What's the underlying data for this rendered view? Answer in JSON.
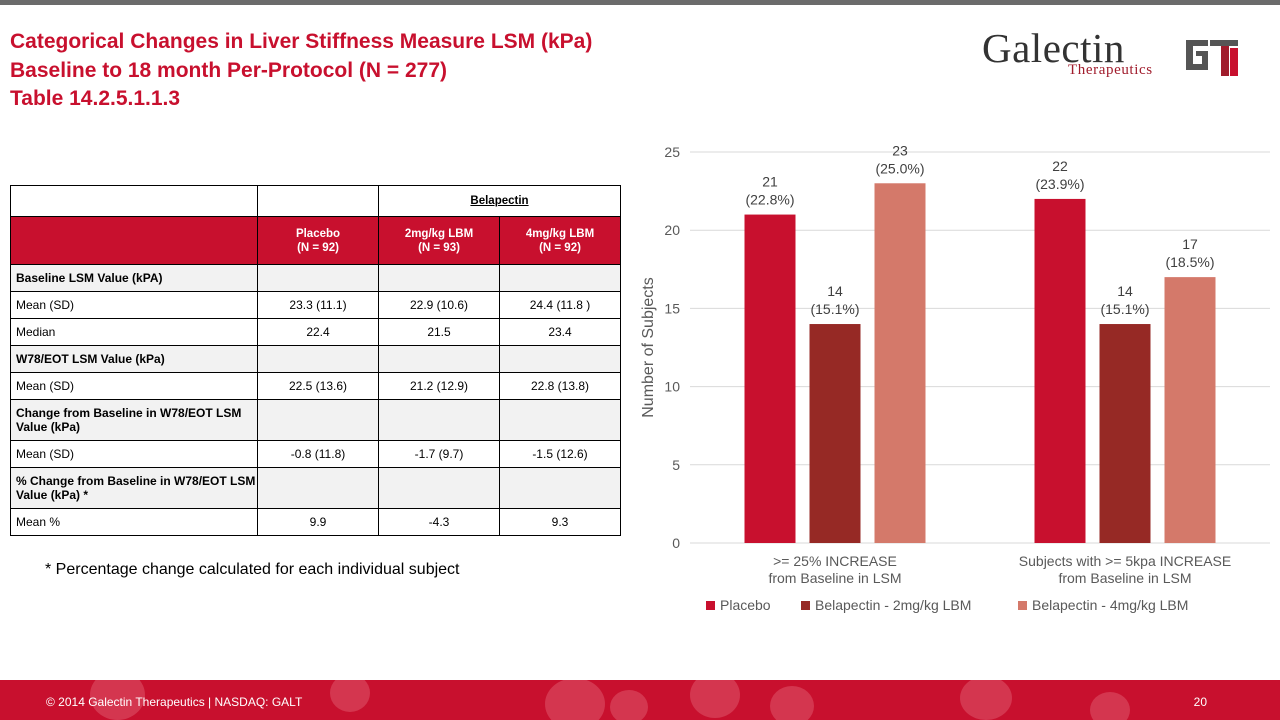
{
  "title": {
    "line1": "Categorical Changes in Liver Stiffness Measure LSM (kPa)",
    "line2": "Baseline to 18 month  Per-Protocol  (N = 277)",
    "line3": "Table 14.2.5.1.1.3"
  },
  "logo": {
    "name": "Galectin",
    "sub": "Therapeutics"
  },
  "table": {
    "group_header": "Belapectin",
    "columns": [
      {
        "name": "Placebo",
        "n": "(N = 92)"
      },
      {
        "name": "2mg/kg LBM",
        "n": "(N = 93)"
      },
      {
        "name": "4mg/kg LBM",
        "n": "(N = 92)"
      }
    ],
    "sections": [
      {
        "title": "Baseline LSM Value (kPA)",
        "rows": [
          {
            "label": "Mean (SD)",
            "values": [
              "23.3 (11.1)",
              "22.9 (10.6)",
              "24.4 (11.8 )"
            ]
          },
          {
            "label": "Median",
            "values": [
              "22.4",
              "21.5",
              "23.4"
            ]
          }
        ]
      },
      {
        "title": "W78/EOT LSM Value (kPa)",
        "rows": [
          {
            "label": "Mean (SD)",
            "values": [
              "22.5 (13.6)",
              "21.2 (12.9)",
              "22.8 (13.8)"
            ]
          }
        ]
      },
      {
        "title": "Change from Baseline in W78/EOT LSM Value (kPa)",
        "rows": [
          {
            "label": "Mean (SD)",
            "values": [
              "-0.8 (11.8)",
              "-1.7 (9.7)",
              "-1.5 (12.6)"
            ]
          }
        ]
      },
      {
        "title": "% Change from Baseline in W78/EOT LSM Value (kPa) *",
        "rows": [
          {
            "label": "Mean %",
            "values": [
              "9.9",
              "-4.3",
              "9.3"
            ]
          }
        ]
      }
    ]
  },
  "footnote": "* Percentage change calculated for each individual subject",
  "chart_data": {
    "type": "bar",
    "categories": [
      ">= 25% INCREASE\nfrom Baseline in LSM",
      "Subjects with >= 5kpa INCREASE\nfrom Baseline in LSM"
    ],
    "series": [
      {
        "name": "Placebo",
        "color": "#c8102e",
        "values": [
          21,
          22
        ],
        "labels": [
          "(22.8%)",
          "(23.9%)"
        ]
      },
      {
        "name": "Belapectin - 2mg/kg LBM",
        "color": "#962925",
        "values": [
          14,
          14
        ],
        "labels": [
          "(15.1%)",
          "(15.1%)"
        ]
      },
      {
        "name": "Belapectin - 4mg/kg LBM",
        "color": "#d4796a",
        "values": [
          23,
          17
        ],
        "labels": [
          "(25.0%)",
          "(18.5%)"
        ]
      }
    ],
    "ylabel": "Number of Subjects",
    "ylim": [
      0,
      25
    ],
    "yticks": [
      0,
      5,
      10,
      15,
      20,
      25
    ],
    "grid": true,
    "legend": "bottom"
  },
  "footer": {
    "text": "© 2014 Galectin Therapeutics  |  NASDAQ: GALT",
    "page": "20"
  },
  "colors": {
    "accent": "#c8102e",
    "dark_red": "#962925",
    "salmon": "#d4796a"
  }
}
